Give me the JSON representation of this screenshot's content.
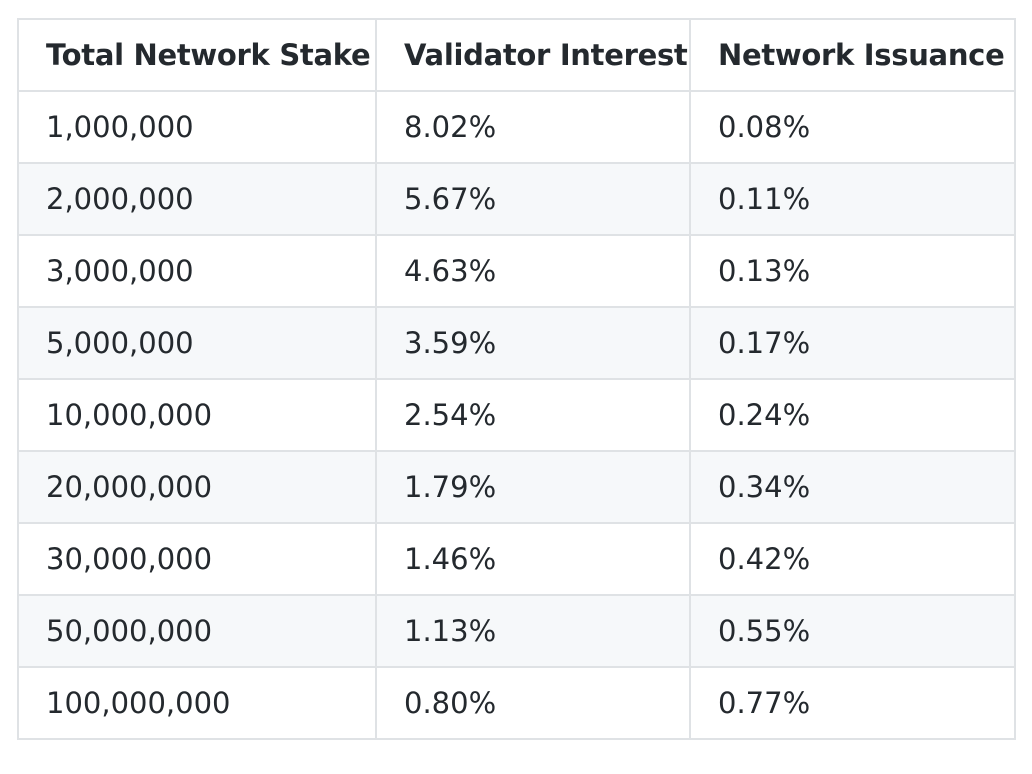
{
  "table": {
    "headers": [
      "Total Network Stake",
      "Validator Interest",
      "Network Issuance"
    ],
    "rows": [
      [
        "1,000,000",
        "8.02%",
        "0.08%"
      ],
      [
        "2,000,000",
        "5.67%",
        "0.11%"
      ],
      [
        "3,000,000",
        "4.63%",
        "0.13%"
      ],
      [
        "5,000,000",
        "3.59%",
        "0.17%"
      ],
      [
        "10,000,000",
        "2.54%",
        "0.24%"
      ],
      [
        "20,000,000",
        "1.79%",
        "0.34%"
      ],
      [
        "30,000,000",
        "1.46%",
        "0.42%"
      ],
      [
        "50,000,000",
        "1.13%",
        "0.55%"
      ],
      [
        "100,000,000",
        "0.80%",
        "0.77%"
      ]
    ]
  },
  "colors": {
    "text": "#24292e",
    "border": "#dfe2e5",
    "stripe": "#f6f8fa",
    "background": "#ffffff"
  }
}
